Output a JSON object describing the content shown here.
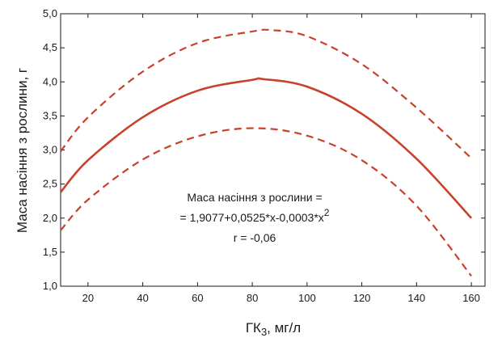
{
  "chart_data": {
    "type": "line",
    "xlabel": "ГК3, мг/л",
    "xlabel_main": "ГК",
    "xlabel_sub": "3",
    "xlabel_rest": ", мг/л",
    "ylabel": "Маса насіння з рослини, г",
    "xlim": [
      10,
      165
    ],
    "ylim": [
      1.0,
      5.0
    ],
    "x_ticks": [
      20,
      40,
      60,
      80,
      100,
      120,
      140,
      160
    ],
    "x_tick_labels": [
      "20",
      "40",
      "60",
      "80",
      "100",
      "120",
      "140",
      "160"
    ],
    "y_ticks": [
      1.0,
      1.5,
      2.0,
      2.5,
      3.0,
      3.5,
      4.0,
      4.5,
      5.0
    ],
    "y_tick_labels": [
      "1,0",
      "1,5",
      "2,0",
      "2,5",
      "3,0",
      "3,5",
      "4,0",
      "4,5",
      "5,0"
    ],
    "grid": false,
    "series": [
      {
        "style": "solid",
        "x": [
          10,
          20,
          40,
          60,
          80,
          84,
          100,
          120,
          140,
          160
        ],
        "y": [
          2.38,
          2.85,
          3.48,
          3.87,
          4.03,
          4.04,
          3.93,
          3.53,
          2.87,
          2.0
        ]
      },
      {
        "style": "dashed",
        "x": [
          10,
          20,
          40,
          60,
          80,
          87,
          100,
          120,
          140,
          160
        ],
        "y": [
          2.98,
          3.48,
          4.15,
          4.57,
          4.74,
          4.76,
          4.67,
          4.26,
          3.62,
          2.88
        ]
      },
      {
        "style": "dashed",
        "x": [
          10,
          20,
          40,
          60,
          80,
          100,
          120,
          140,
          160
        ],
        "y": [
          1.82,
          2.27,
          2.86,
          3.2,
          3.32,
          3.21,
          2.85,
          2.18,
          1.15
        ]
      }
    ],
    "annotation": {
      "line1": "Маса насіння з рослини =",
      "line2": "= 1,9077+0,0525*x-0,0003*x",
      "line2_sup": "2",
      "line3": "r = -0,06"
    },
    "colors": {
      "line": "#c8412a",
      "axis": "#1a1a1a"
    }
  }
}
